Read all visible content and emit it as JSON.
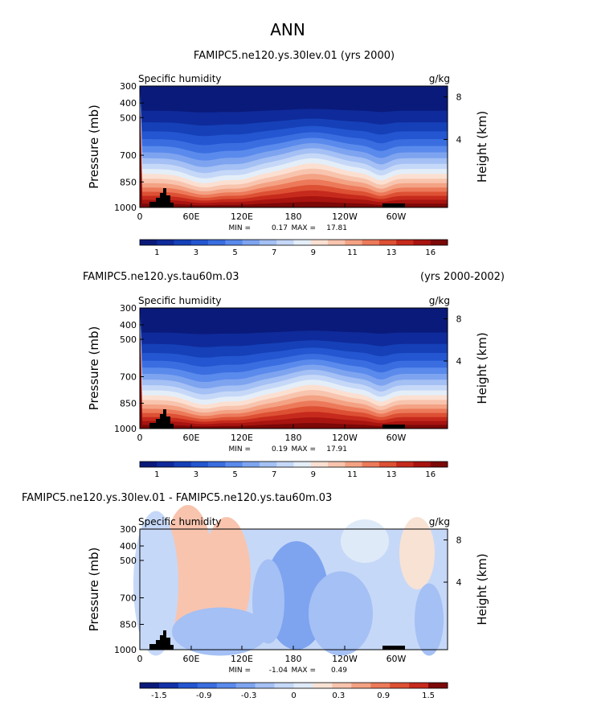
{
  "figure_title": "ANN",
  "chart_data": [
    {
      "type": "heatmap",
      "title": "FAMIPC5.ne120.ys.30lev.01 (yrs 2000)",
      "title_right": "",
      "variable": "Specific humidity",
      "units": "g/kg",
      "ylabel": "Pressure (mb)",
      "ylabel_right": "Height (km)",
      "y_ticks": [
        "300",
        "400",
        "500",
        "700",
        "850",
        "1000"
      ],
      "y_right_ticks": [
        "8",
        "4"
      ],
      "x_ticks": [
        "0",
        "60E",
        "120E",
        "180",
        "120W",
        "60W"
      ],
      "ylim": [
        1000,
        300
      ],
      "xlim": [
        0,
        360
      ],
      "min_label": "MIN =",
      "min": "0.17",
      "max_label": "MAX =",
      "max": "17.81",
      "colorbar_ticks": [
        "1",
        "3",
        "5",
        "7",
        "9",
        "11",
        "13",
        "16"
      ]
    },
    {
      "type": "heatmap",
      "title": "FAMIPC5.ne120.ys.tau60m.03",
      "title_right": "(yrs 2000-2002)",
      "variable": "Specific humidity",
      "units": "g/kg",
      "ylabel": "Pressure (mb)",
      "ylabel_right": "Height (km)",
      "y_ticks": [
        "300",
        "400",
        "500",
        "700",
        "850",
        "1000"
      ],
      "y_right_ticks": [
        "8",
        "4"
      ],
      "x_ticks": [
        "0",
        "60E",
        "120E",
        "180",
        "120W",
        "60W"
      ],
      "ylim": [
        1000,
        300
      ],
      "xlim": [
        0,
        360
      ],
      "min_label": "MIN =",
      "min": "0.19",
      "max_label": "MAX =",
      "max": "17.91",
      "colorbar_ticks": [
        "1",
        "3",
        "5",
        "7",
        "9",
        "11",
        "13",
        "16"
      ]
    },
    {
      "type": "heatmap",
      "title": "FAMIPC5.ne120.ys.30lev.01 - FAMIPC5.ne120.ys.tau60m.03",
      "title_right": "",
      "variable": "Specific humidity",
      "units": "g/kg",
      "ylabel": "Pressure (mb)",
      "ylabel_right": "Height (km)",
      "y_ticks": [
        "300",
        "400",
        "500",
        "700",
        "850",
        "1000"
      ],
      "y_right_ticks": [
        "8",
        "4"
      ],
      "x_ticks": [
        "0",
        "60E",
        "120E",
        "180",
        "120W",
        "60W"
      ],
      "ylim": [
        1000,
        300
      ],
      "xlim": [
        0,
        360
      ],
      "min_label": "MIN =",
      "min": "-1.04",
      "max_label": "MAX =",
      "max": "0.49",
      "colorbar_ticks": [
        "-1.5",
        "-0.9",
        "-0.3",
        "0",
        "0.3",
        "0.9",
        "1.5"
      ]
    }
  ],
  "colors": {
    "abs_scale": [
      "#0a1a7a",
      "#0f2a9a",
      "#1540b8",
      "#2356d0",
      "#3a6ee0",
      "#5a8aec",
      "#7ea4f0",
      "#a4c0f4",
      "#c6d8f8",
      "#e4eef8",
      "#fbe0d2",
      "#f8c4ae",
      "#f4a284",
      "#ec7a5a",
      "#dd5034",
      "#c62a1c",
      "#a81410",
      "#7c0808"
    ],
    "diff_scale": [
      "#0a1a7a",
      "#1332a8",
      "#2356d0",
      "#3a6ee0",
      "#5a8aec",
      "#7ea4f0",
      "#a4c0f4",
      "#c6d8f8",
      "#dfeaf8",
      "#f8e2d4",
      "#f8c4ae",
      "#f4a284",
      "#ec7a5a",
      "#dd5034",
      "#c62a1c",
      "#7c0808"
    ],
    "diff_background": "#c6d8f8",
    "terrain": "#000000"
  }
}
